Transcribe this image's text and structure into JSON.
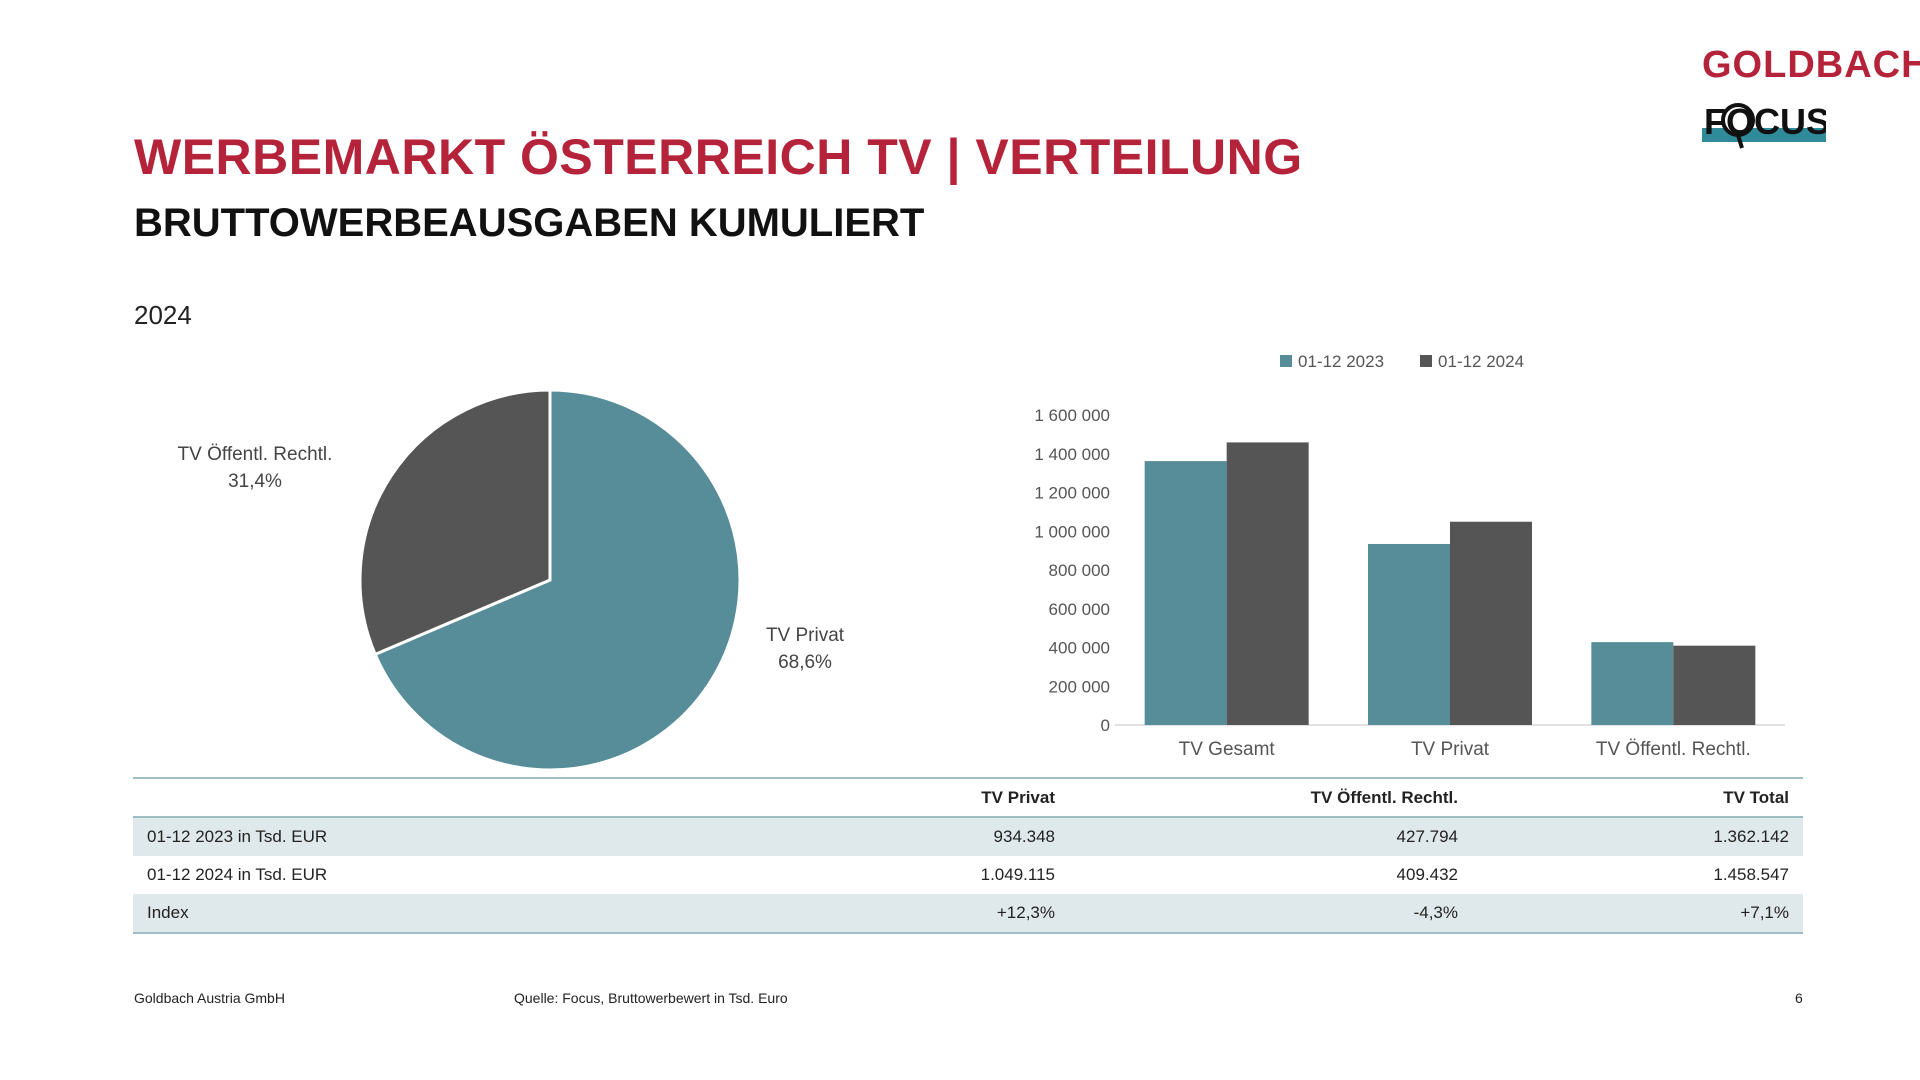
{
  "header": {
    "title": "WERBEMARKT ÖSTERREICH TV | VERTEILUNG",
    "subtitle": "BRUTTOWERBEAUSGABEN KUMULIERT",
    "year": "2024"
  },
  "logo": {
    "brand": "GOLDBACH",
    "sub": "FOCUS",
    "icon": "focus-logo-icon"
  },
  "colors": {
    "brand_red": "#b5233b",
    "teal": "#568d98",
    "dark_gray": "#555555",
    "table_stripe": "#dfe9eb"
  },
  "chart_data": [
    {
      "type": "pie",
      "title": "2024",
      "slices": [
        {
          "label": "TV Privat",
          "value": 68.6,
          "display": "68,6%",
          "color": "#568d98"
        },
        {
          "label": "TV Öffentl. Rechtl.",
          "value": 31.4,
          "display": "31,4%",
          "color": "#555555"
        }
      ]
    },
    {
      "type": "bar",
      "categories": [
        "TV Gesamt",
        "TV Privat",
        "TV Öffentl. Rechtl."
      ],
      "series": [
        {
          "name": "01-12 2023",
          "color": "#568d98",
          "values": [
            1362142,
            934348,
            427794
          ]
        },
        {
          "name": "01-12 2024",
          "color": "#555555",
          "values": [
            1458547,
            1049115,
            409432
          ]
        }
      ],
      "ylim": [
        0,
        1600000
      ],
      "yticks": [
        0,
        200000,
        400000,
        600000,
        800000,
        1000000,
        1200000,
        1400000,
        1600000
      ],
      "ytick_labels": [
        "0",
        "200 000",
        "400 000",
        "600 000",
        "800 000",
        "1 000 000",
        "1 200 000",
        "1 400 000",
        "1 600 000"
      ],
      "legend": "top",
      "grid": false
    }
  ],
  "table": {
    "headers": [
      "",
      "TV Privat",
      "TV Öffentl. Rechtl.",
      "TV Total"
    ],
    "rows": [
      [
        "01-12 2023 in Tsd. EUR",
        "934.348",
        "427.794",
        "1.362.142"
      ],
      [
        "01-12 2024 in Tsd. EUR",
        "1.049.115",
        "409.432",
        "1.458.547"
      ],
      [
        "Index",
        "+12,3%",
        "-4,3%",
        "+7,1%"
      ]
    ]
  },
  "footer": {
    "company": "Goldbach Austria GmbH",
    "source": "Quelle: Focus, Bruttowerbewert in Tsd. Euro",
    "page": "6"
  }
}
